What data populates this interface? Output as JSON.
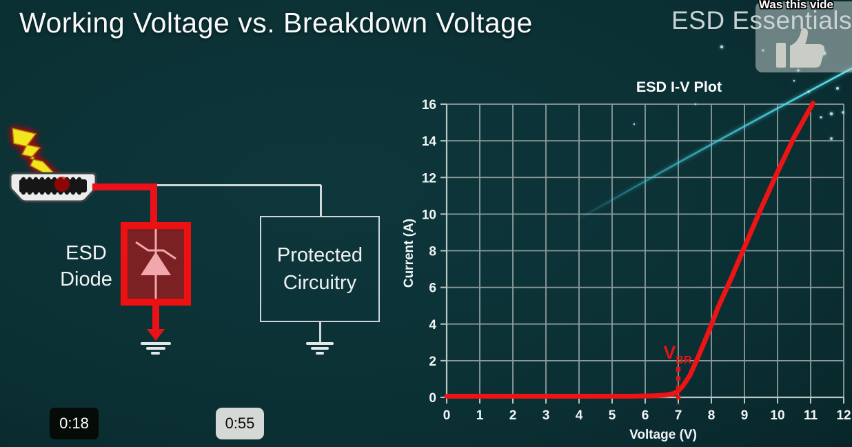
{
  "page_title": "Working Voltage vs. Breakdown Voltage",
  "watermark": "ESD Essentials",
  "overlay": {
    "question_text": "Was this vide",
    "icon": "thumbs-up-icon"
  },
  "time_badges": [
    {
      "label": "0:18",
      "style": "dark"
    },
    {
      "label": "0:55",
      "style": "light"
    }
  ],
  "diagram": {
    "esd_label": [
      "ESD",
      "Diode"
    ],
    "protected_label": [
      "Protected",
      "Circuitry"
    ],
    "icons": [
      "lightning-bolt-icon",
      "hdmi-connector-icon",
      "zener-diode-symbol",
      "ground-symbol"
    ]
  },
  "chart_data": {
    "type": "line",
    "title": "ESD I-V Plot",
    "xlabel": "Voltage (V)",
    "ylabel": "Current (A)",
    "xlim": [
      0,
      12
    ],
    "ylim": [
      0,
      16
    ],
    "xticks": [
      0,
      1,
      2,
      3,
      4,
      5,
      6,
      7,
      8,
      9,
      10,
      11,
      12
    ],
    "yticks": [
      0,
      2,
      4,
      6,
      8,
      10,
      12,
      14,
      16
    ],
    "grid": true,
    "legend": "none",
    "series": [
      {
        "name": "ESD diode I-V curve",
        "color": "#ec1414",
        "points": [
          [
            0,
            0.06
          ],
          [
            5.5,
            0.06
          ],
          [
            6.2,
            0.08
          ],
          [
            6.6,
            0.12
          ],
          [
            6.85,
            0.2
          ],
          [
            7.0,
            0.35
          ],
          [
            7.15,
            0.65
          ],
          [
            7.35,
            1.2
          ],
          [
            7.6,
            2.2
          ],
          [
            7.9,
            3.5
          ],
          [
            8.2,
            4.9
          ],
          [
            8.6,
            6.5
          ],
          [
            9,
            8.2
          ],
          [
            9.5,
            10.3
          ],
          [
            10,
            12.3
          ],
          [
            10.5,
            14.2
          ],
          [
            11.07,
            16.05
          ]
        ]
      }
    ],
    "annotations": [
      {
        "type": "label",
        "text": "V",
        "subscript": "BR",
        "x": 6.55,
        "y": 2.1,
        "color": "#e51313"
      },
      {
        "type": "vline-dotted",
        "x": 7,
        "y_from": -0.4,
        "y_to": 1.65,
        "color": "#e51313"
      }
    ]
  },
  "colors": {
    "background": "#0c3236",
    "grid": "#8d9c9c",
    "axis": "#b9c6c6",
    "curve_red": "#ec1414",
    "accent_teal": "#46cde0",
    "wire_gray": "#cfd8d8",
    "diode_fill": "#7b2124",
    "diode_border": "#ed1111",
    "symbol_pink": "#f2a7ad",
    "star": "#bdeef4"
  },
  "decor": {
    "swoosh": {
      "from": [
        828,
        324
      ],
      "ctrl": [
        1005,
        222
      ],
      "to": [
        1238,
        98
      ]
    },
    "stars": [
      [
        1047,
        68,
        2.2
      ],
      [
        1107,
        73,
        1.5
      ],
      [
        1130,
        82,
        2.5
      ],
      [
        1195,
        77,
        3.2
      ],
      [
        1158,
        102,
        1.7
      ],
      [
        1173,
        133,
        1.6
      ],
      [
        1215,
        128,
        2.0
      ],
      [
        1191,
        170,
        1.6
      ],
      [
        1206,
        165,
        2.3
      ],
      [
        1223,
        163,
        1.7
      ],
      [
        1206,
        201,
        1.9
      ],
      [
        1152,
        117,
        1.3
      ],
      [
        1009,
        151,
        1.2
      ],
      [
        920,
        180,
        1.2
      ]
    ]
  }
}
